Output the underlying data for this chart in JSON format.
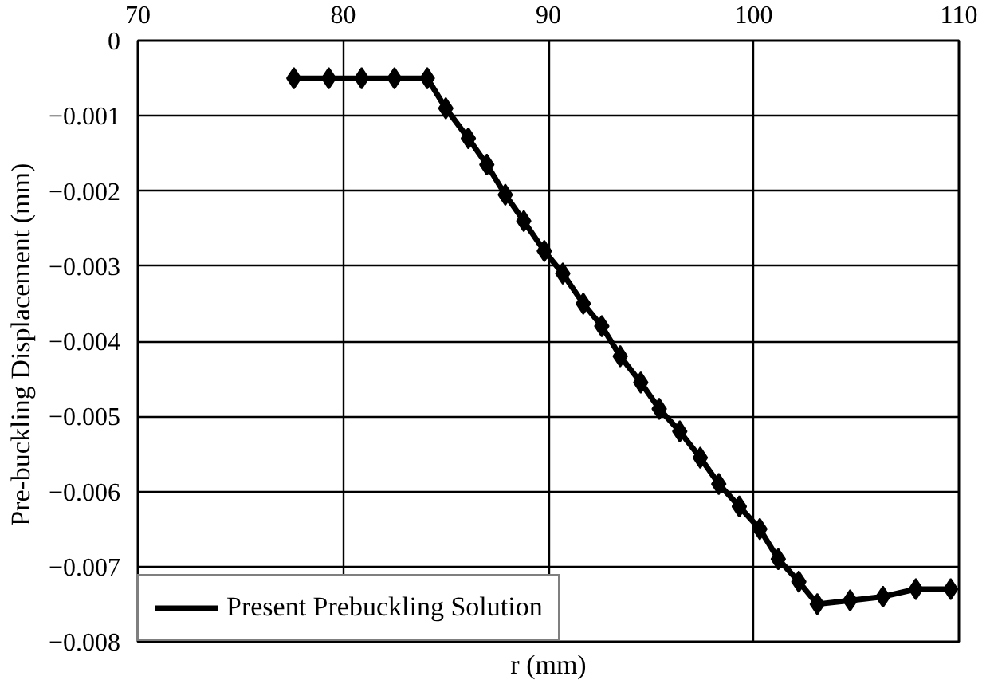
{
  "chart_data": {
    "type": "line",
    "xlabel": "r (mm)",
    "ylabel": "Pre-buckling Displacement  (mm)",
    "xlim": [
      70,
      110
    ],
    "xticks": [
      70,
      80,
      90,
      100,
      110
    ],
    "ylim": [
      -0.008,
      0
    ],
    "yticks": [
      0,
      -0.001,
      -0.002,
      -0.003,
      -0.004,
      -0.005,
      -0.006,
      -0.007,
      -0.008
    ],
    "grid": true,
    "legend": "bottom left",
    "series": [
      {
        "name": "Present Prebuckling Solution",
        "color": "#000000",
        "line_style": "solid",
        "marker": "none",
        "x": [
          77.6,
          79.3,
          80.9,
          82.5,
          84.1,
          85.0,
          86.1,
          87.0,
          87.9,
          88.8,
          89.8,
          90.7,
          91.7,
          92.6,
          93.5,
          94.5,
          95.4,
          96.4,
          97.4,
          98.3,
          99.3,
          100.3,
          101.2,
          102.2,
          103.1,
          104.7,
          106.3,
          107.9,
          109.6
        ],
        "values": [
          -0.0005,
          -0.0005,
          -0.0005,
          -0.0005,
          -0.0005,
          -0.0009,
          -0.0013,
          -0.00165,
          -0.00205,
          -0.0024,
          -0.0028,
          -0.0031,
          -0.0035,
          -0.0038,
          -0.0042,
          -0.00455,
          -0.0049,
          -0.0052,
          -0.00555,
          -0.0059,
          -0.0062,
          -0.0065,
          -0.0069,
          -0.0072,
          -0.0075,
          -0.00745,
          -0.0074,
          -0.0073,
          -0.0073
        ]
      },
      {
        "type": "scatter",
        "color": "#000000",
        "marker": "diamond",
        "x": [
          77.6,
          79.3,
          80.9,
          82.5,
          84.1,
          85.0,
          86.1,
          87.0,
          87.9,
          88.8,
          89.8,
          90.7,
          91.7,
          92.6,
          93.5,
          94.5,
          95.4,
          96.4,
          97.4,
          98.3,
          99.3,
          100.3,
          101.2,
          102.2,
          103.1,
          104.7,
          106.3,
          107.9,
          109.6
        ],
        "values": [
          -0.0005,
          -0.0005,
          -0.0005,
          -0.0005,
          -0.0005,
          -0.0009,
          -0.0013,
          -0.00165,
          -0.00205,
          -0.0024,
          -0.0028,
          -0.0031,
          -0.0035,
          -0.0038,
          -0.0042,
          -0.00455,
          -0.0049,
          -0.0052,
          -0.00555,
          -0.0059,
          -0.0062,
          -0.0065,
          -0.0069,
          -0.0072,
          -0.0075,
          -0.00745,
          -0.0074,
          -0.0073,
          -0.0073
        ]
      }
    ]
  }
}
